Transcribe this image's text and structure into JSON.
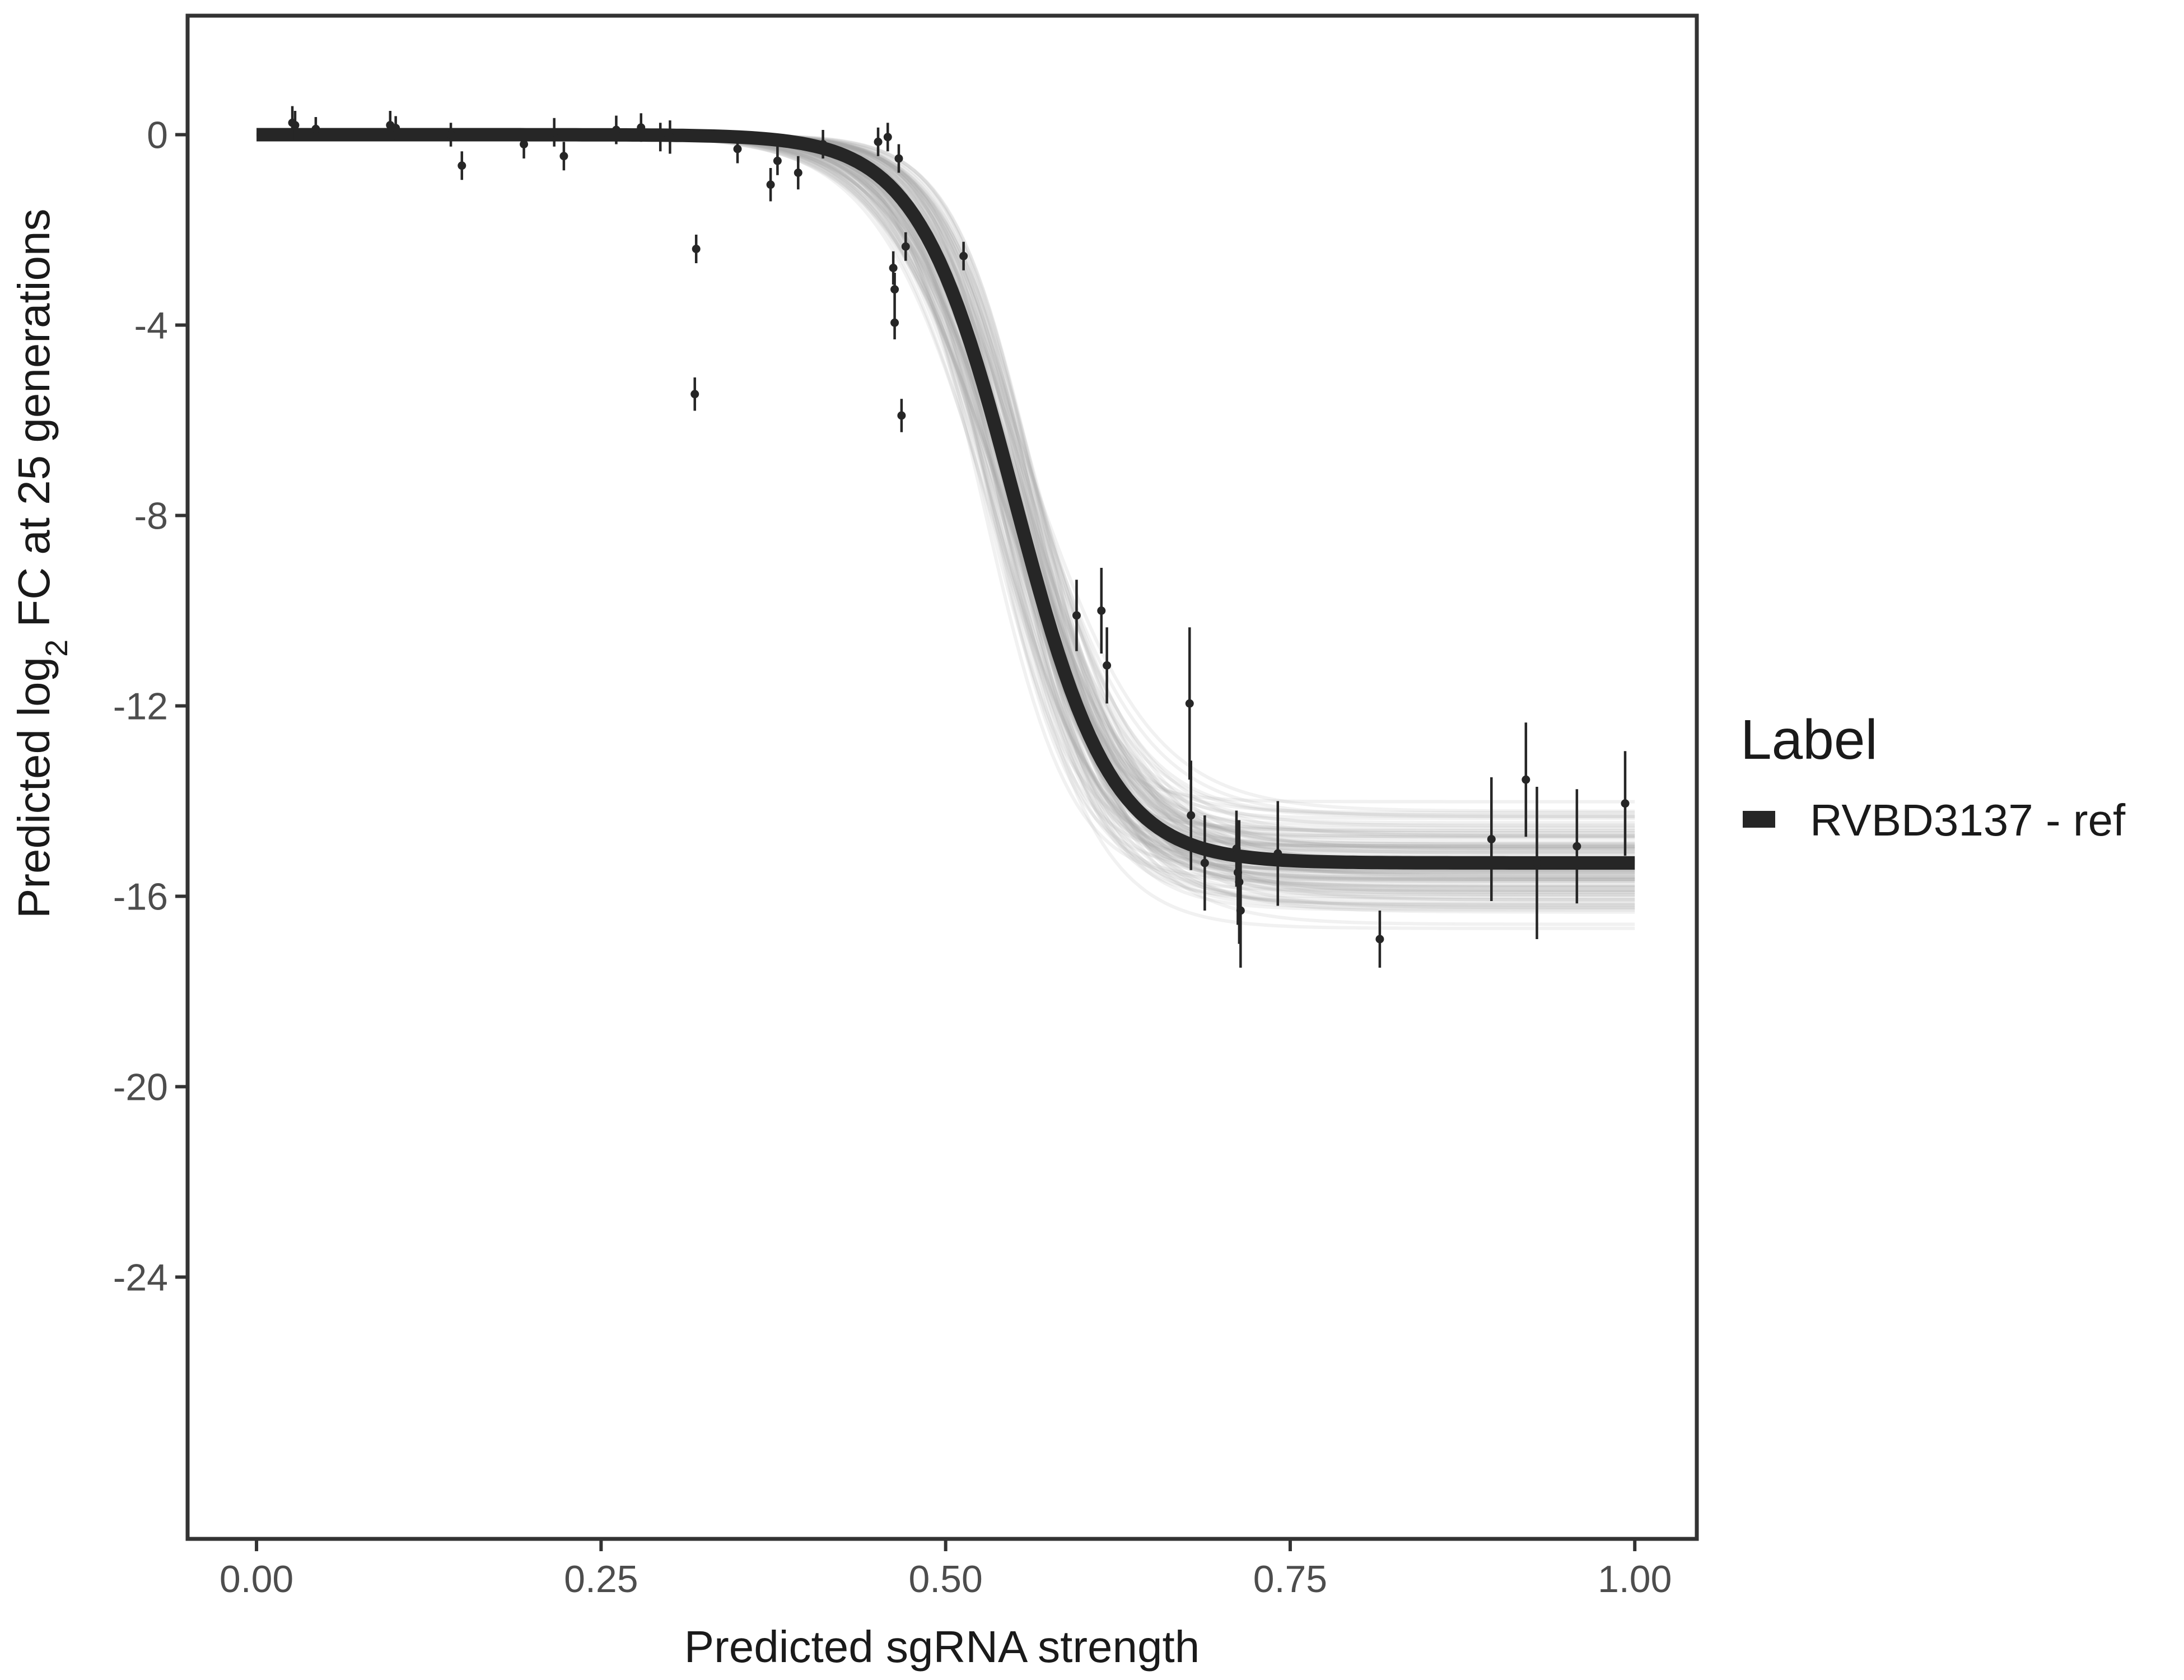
{
  "chart_data": {
    "type": "scatter",
    "title": "",
    "xlabel": "Predicted sgRNA strength",
    "ylabel": {
      "prefix": "Predicted  log",
      "subscript": "2",
      "suffix": " FC at 25 generations"
    },
    "xlim": [
      -0.05,
      1.045
    ],
    "ylim": [
      -29.5,
      2.5
    ],
    "x_ticks": [
      0.0,
      0.25,
      0.5,
      0.75,
      1.0
    ],
    "x_tick_labels": [
      "0.00",
      "0.25",
      "0.50",
      "0.75",
      "1.00"
    ],
    "y_ticks": [
      0,
      -4,
      -8,
      -12,
      -16,
      -20,
      -24
    ],
    "y_tick_labels": [
      "0",
      "-4",
      "-8",
      "-12",
      "-16",
      "-20",
      "-24"
    ],
    "grid": false,
    "legend": {
      "title": "Label",
      "position": "right",
      "entries": [
        {
          "label": "RVBD3137 - ref",
          "color": "#262626"
        }
      ]
    },
    "fit_curve": {
      "model": "logistic",
      "name": "RVBD3137 - ref",
      "color": "#262626",
      "x_range": [
        0.0,
        1.0
      ],
      "top": 0.0,
      "bottom": -15.3,
      "midpoint": 0.55,
      "scale": 0.035,
      "posterior_band": {
        "color": "#a6a6a6",
        "bottom_low": -16.7,
        "bottom_high": -13.9,
        "midpoint_low": 0.525,
        "midpoint_high": 0.575,
        "scale_low": 0.028,
        "scale_high": 0.045
      }
    },
    "points": [
      {
        "x": 0.026,
        "y": 0.25,
        "err": 0.35
      },
      {
        "x": 0.028,
        "y": 0.2,
        "err": 0.3
      },
      {
        "x": 0.043,
        "y": 0.12,
        "err": 0.25
      },
      {
        "x": 0.097,
        "y": 0.2,
        "err": 0.3
      },
      {
        "x": 0.101,
        "y": 0.14,
        "err": 0.25
      },
      {
        "x": 0.141,
        "y": 0.0,
        "err": 0.25
      },
      {
        "x": 0.149,
        "y": -0.65,
        "err": 0.3
      },
      {
        "x": 0.194,
        "y": -0.2,
        "err": 0.3
      },
      {
        "x": 0.216,
        "y": 0.05,
        "err": 0.3
      },
      {
        "x": 0.223,
        "y": -0.45,
        "err": 0.3
      },
      {
        "x": 0.261,
        "y": 0.1,
        "err": 0.3
      },
      {
        "x": 0.279,
        "y": 0.15,
        "err": 0.3
      },
      {
        "x": 0.293,
        "y": -0.05,
        "err": 0.3
      },
      {
        "x": 0.3,
        "y": -0.05,
        "err": 0.35
      },
      {
        "x": 0.318,
        "y": -5.45,
        "err": 0.35
      },
      {
        "x": 0.319,
        "y": -2.4,
        "err": 0.3
      },
      {
        "x": 0.349,
        "y": -0.3,
        "err": 0.3
      },
      {
        "x": 0.373,
        "y": -1.05,
        "err": 0.35
      },
      {
        "x": 0.378,
        "y": -0.55,
        "err": 0.3
      },
      {
        "x": 0.393,
        "y": -0.8,
        "err": 0.35
      },
      {
        "x": 0.411,
        "y": -0.2,
        "err": 0.3
      },
      {
        "x": 0.451,
        "y": -0.15,
        "err": 0.3
      },
      {
        "x": 0.458,
        "y": -0.05,
        "err": 0.3
      },
      {
        "x": 0.462,
        "y": -2.8,
        "err": 0.35
      },
      {
        "x": 0.463,
        "y": -3.25,
        "err": 0.35
      },
      {
        "x": 0.463,
        "y": -3.95,
        "err": 0.35
      },
      {
        "x": 0.466,
        "y": -0.5,
        "err": 0.3
      },
      {
        "x": 0.468,
        "y": -5.9,
        "err": 0.35
      },
      {
        "x": 0.471,
        "y": -2.35,
        "err": 0.3
      },
      {
        "x": 0.513,
        "y": -2.55,
        "err": 0.3
      },
      {
        "x": 0.595,
        "y": -10.1,
        "err": 0.75
      },
      {
        "x": 0.613,
        "y": -10.0,
        "err": 0.9
      },
      {
        "x": 0.617,
        "y": -11.15,
        "err": 0.8
      },
      {
        "x": 0.677,
        "y": -11.95,
        "err": 1.6
      },
      {
        "x": 0.678,
        "y": -14.3,
        "err": 1.15
      },
      {
        "x": 0.688,
        "y": -15.3,
        "err": 1.0
      },
      {
        "x": 0.711,
        "y": -15.0,
        "err": 0.8
      },
      {
        "x": 0.712,
        "y": -15.5,
        "err": 1.1
      },
      {
        "x": 0.713,
        "y": -15.7,
        "err": 1.3
      },
      {
        "x": 0.714,
        "y": -16.3,
        "err": 1.2
      },
      {
        "x": 0.741,
        "y": -15.1,
        "err": 1.1
      },
      {
        "x": 0.815,
        "y": -16.9,
        "err": 0.6
      },
      {
        "x": 0.896,
        "y": -14.8,
        "err": 1.3
      },
      {
        "x": 0.921,
        "y": -13.55,
        "err": 1.2
      },
      {
        "x": 0.929,
        "y": -15.3,
        "err": 1.6
      },
      {
        "x": 0.958,
        "y": -14.95,
        "err": 1.2
      },
      {
        "x": 0.993,
        "y": -14.05,
        "err": 1.1
      }
    ]
  }
}
